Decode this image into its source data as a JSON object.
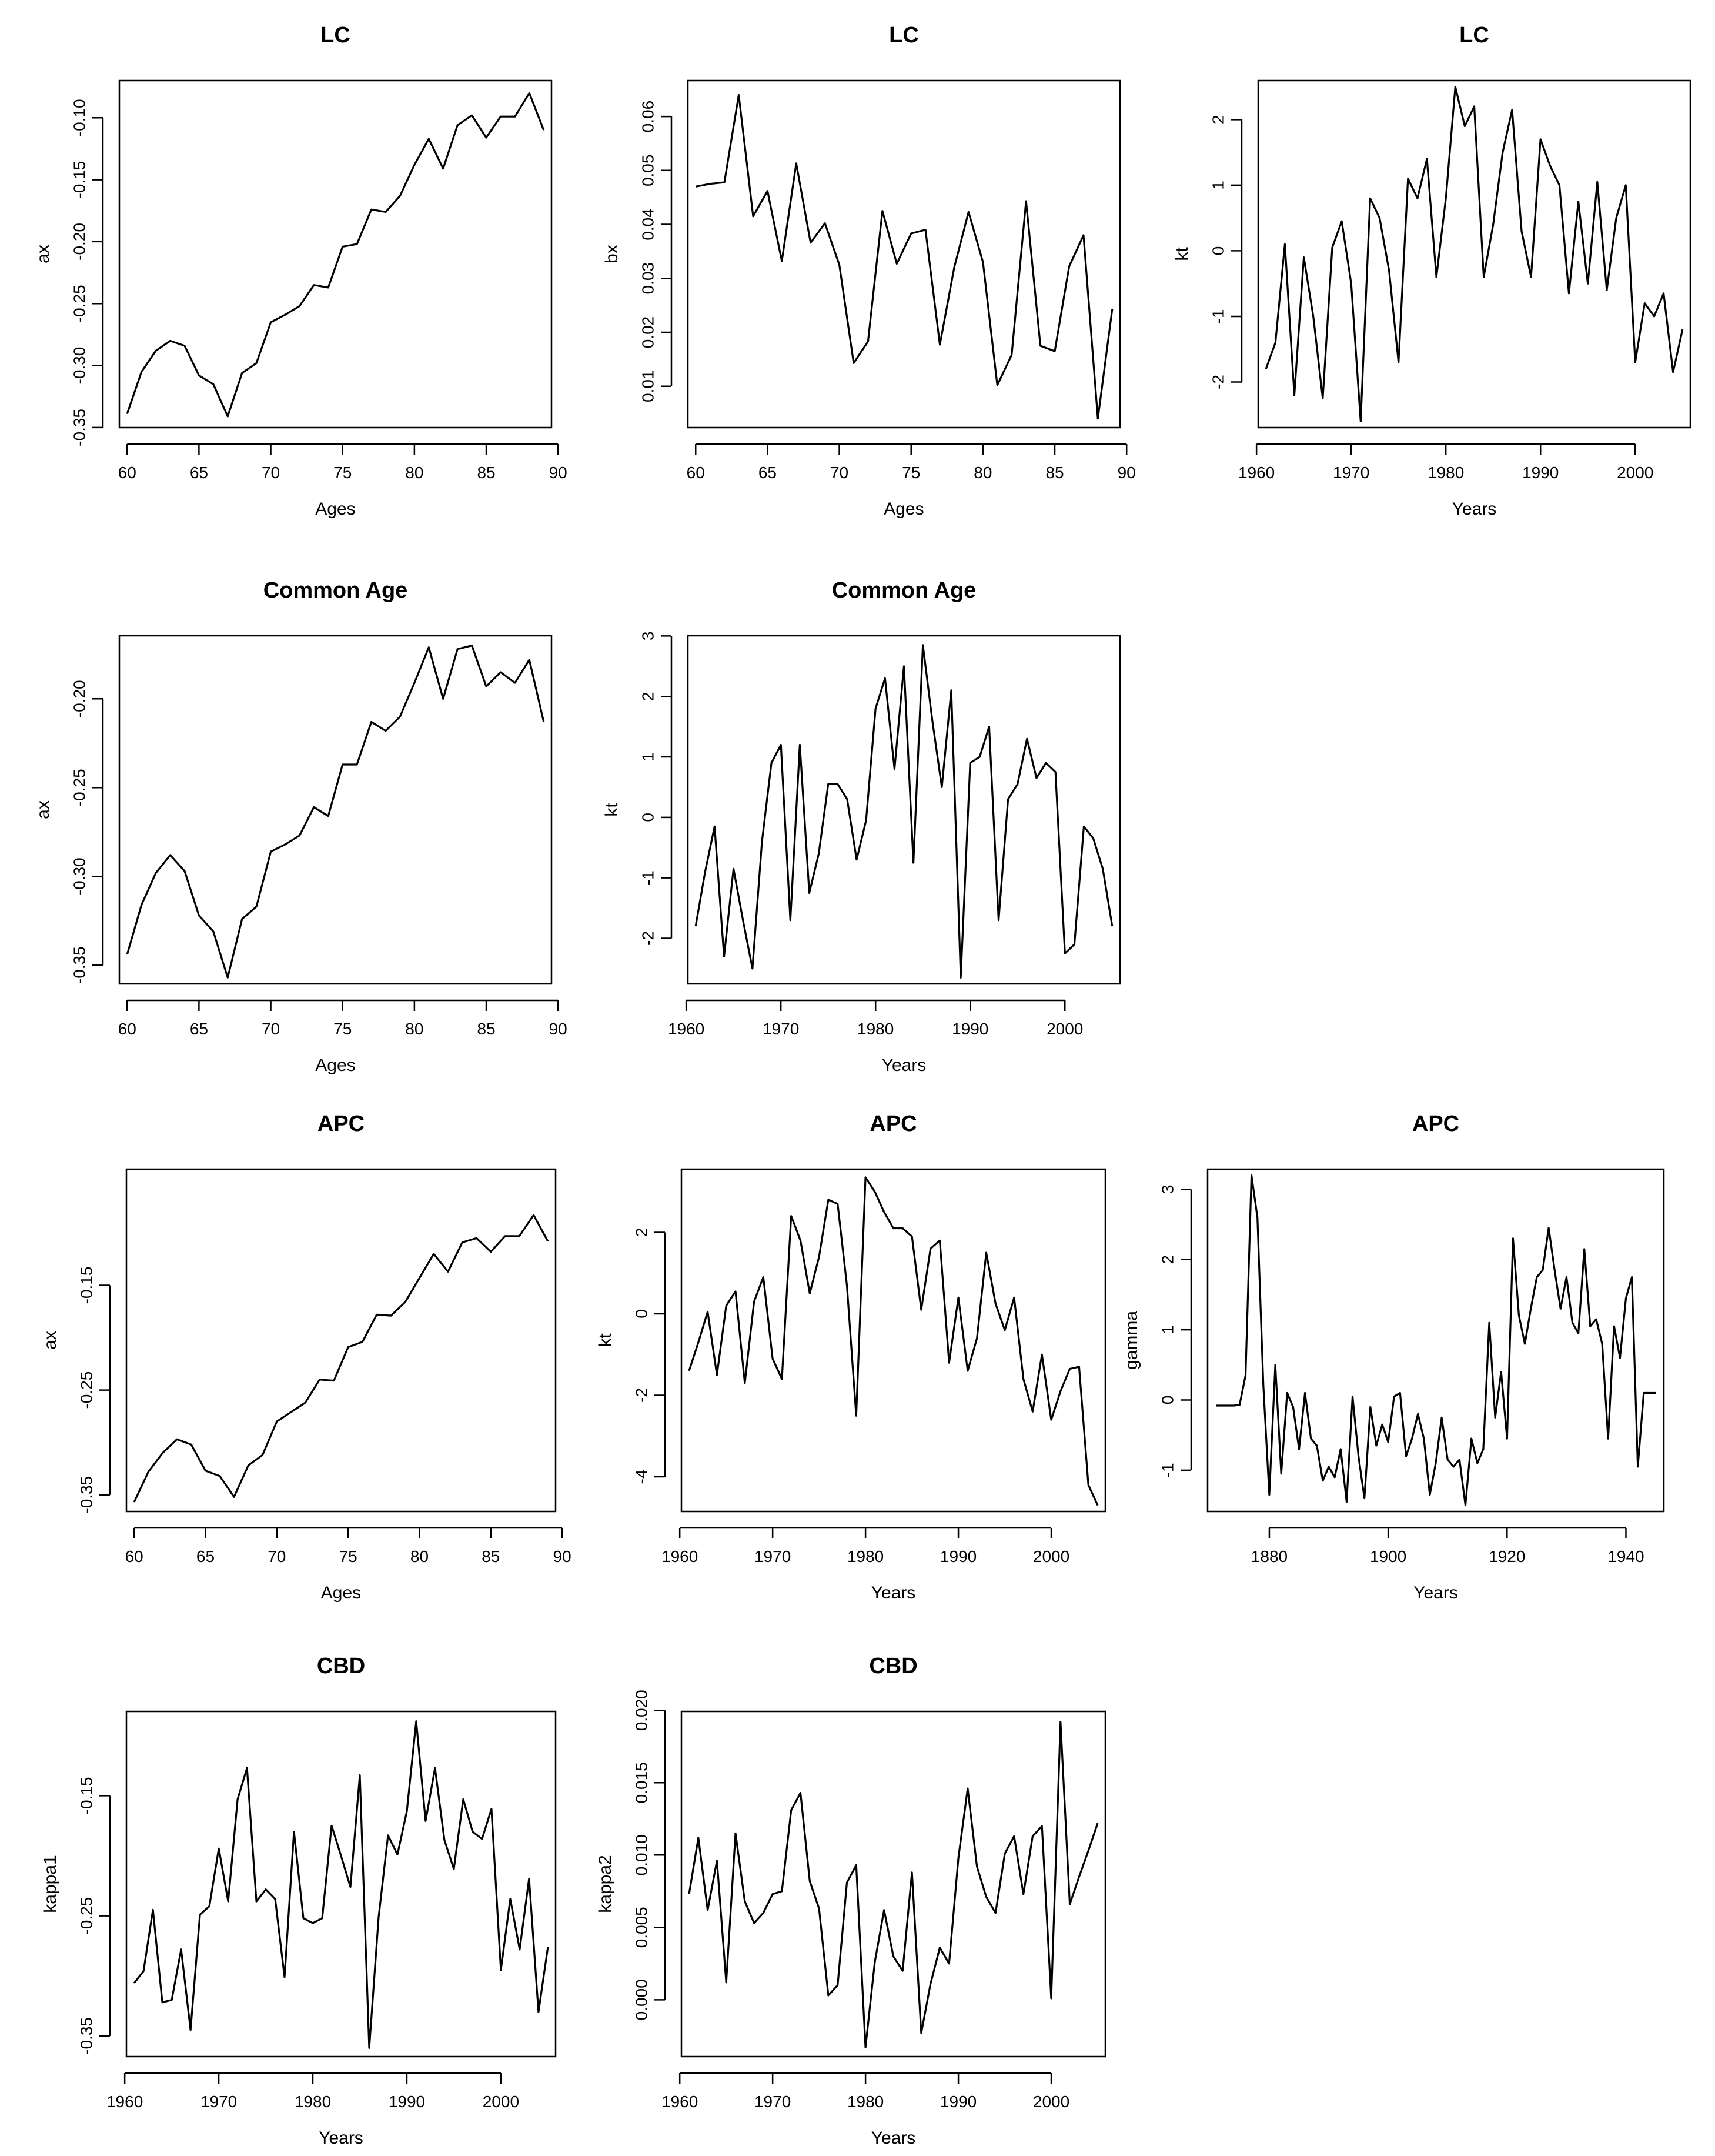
{
  "chart_data": [
    {
      "type": "line",
      "title": "LC",
      "xlabel": "Ages",
      "ylabel": "ax",
      "xlim": [
        60,
        89
      ],
      "ylim": [
        -0.345,
        -0.075
      ],
      "xticks": [
        60,
        65,
        70,
        75,
        80,
        85,
        90
      ],
      "xtick_labels": [
        "60",
        "65",
        "70",
        "75",
        "80",
        "85",
        "90"
      ],
      "yticks": [
        -0.35,
        -0.3,
        -0.25,
        -0.2,
        -0.15,
        -0.1
      ],
      "ytick_labels": [
        "-0.35",
        "-0.30",
        "-0.25",
        "-0.20",
        "-0.15",
        "-0.10"
      ],
      "x": [
        60,
        61,
        62,
        63,
        64,
        65,
        66,
        67,
        68,
        69,
        70,
        71,
        72,
        73,
        74,
        75,
        76,
        77,
        78,
        79,
        80,
        81,
        82,
        83,
        84,
        85,
        86,
        87,
        88,
        89
      ],
      "y": [
        -0.339,
        -0.305,
        -0.288,
        -0.28,
        -0.284,
        -0.308,
        -0.315,
        -0.341,
        -0.306,
        -0.298,
        -0.265,
        -0.259,
        -0.252,
        -0.235,
        -0.237,
        -0.204,
        -0.202,
        -0.174,
        -0.176,
        -0.163,
        -0.138,
        -0.117,
        -0.141,
        -0.106,
        -0.098,
        -0.116,
        -0.099,
        -0.099,
        -0.08,
        -0.11
      ]
    },
    {
      "type": "line",
      "title": "LC",
      "xlabel": "Ages",
      "ylabel": "bx",
      "xlim": [
        60,
        89
      ],
      "ylim": [
        0.0035,
        0.0655
      ],
      "xticks": [
        60,
        65,
        70,
        75,
        80,
        85,
        90
      ],
      "xtick_labels": [
        "60",
        "65",
        "70",
        "75",
        "80",
        "85",
        "90"
      ],
      "yticks": [
        0.01,
        0.02,
        0.03,
        0.04,
        0.05,
        0.06
      ],
      "ytick_labels": [
        "0.01",
        "0.02",
        "0.03",
        "0.04",
        "0.05",
        "0.06"
      ],
      "x": [
        60,
        61,
        62,
        63,
        64,
        65,
        66,
        67,
        68,
        69,
        70,
        71,
        72,
        73,
        74,
        75,
        76,
        77,
        78,
        79,
        80,
        81,
        82,
        83,
        84,
        85,
        86,
        87,
        88,
        89
      ],
      "y": [
        0.047,
        0.0475,
        0.0478,
        0.064,
        0.0415,
        0.0462,
        0.0332,
        0.0513,
        0.0366,
        0.0402,
        0.0325,
        0.0143,
        0.0183,
        0.0425,
        0.0327,
        0.0383,
        0.039,
        0.0177,
        0.032,
        0.0423,
        0.033,
        0.0102,
        0.0158,
        0.0443,
        0.0175,
        0.0165,
        0.0322,
        0.038,
        0.004,
        0.0243
      ]
    },
    {
      "type": "line",
      "title": "LC",
      "xlabel": "Years",
      "ylabel": "kt",
      "xlim": [
        1961,
        2005
      ],
      "ylim": [
        -2.6,
        2.5
      ],
      "xticks": [
        1960,
        1970,
        1980,
        1990,
        2000
      ],
      "xtick_labels": [
        "1960",
        "1970",
        "1980",
        "1990",
        "2000"
      ],
      "yticks": [
        -2,
        -1,
        0,
        1,
        2
      ],
      "ytick_labels": [
        "-2",
        "-1",
        "0",
        "1",
        "2"
      ],
      "x": [
        1961,
        1962,
        1963,
        1964,
        1965,
        1966,
        1967,
        1968,
        1969,
        1970,
        1971,
        1972,
        1973,
        1974,
        1975,
        1976,
        1977,
        1978,
        1979,
        1980,
        1981,
        1982,
        1983,
        1984,
        1985,
        1986,
        1987,
        1988,
        1989,
        1990,
        1991,
        1992,
        1993,
        1994,
        1995,
        1996,
        1997,
        1998,
        1999,
        2000,
        2001,
        2002,
        2003,
        2004,
        2005
      ],
      "y": [
        -1.8,
        -1.4,
        0.1,
        -2.2,
        -0.1,
        -1.0,
        -2.25,
        0.05,
        0.45,
        -0.5,
        -2.6,
        0.8,
        0.5,
        -0.3,
        -1.7,
        1.1,
        0.8,
        1.4,
        -0.4,
        0.8,
        2.5,
        1.9,
        2.2,
        -0.4,
        0.4,
        1.5,
        2.15,
        0.3,
        -0.4,
        1.7,
        1.3,
        1.0,
        -0.65,
        0.75,
        -0.5,
        1.05,
        -0.6,
        0.5,
        1.0,
        -1.7,
        -0.8,
        -1.0,
        -0.65,
        -1.85,
        -1.2
      ]
    },
    {
      "type": "line",
      "title": "Common Age",
      "xlabel": "Ages",
      "ylabel": "ax",
      "xlim": [
        60,
        89
      ],
      "ylim": [
        -0.357,
        -0.168
      ],
      "xticks": [
        60,
        65,
        70,
        75,
        80,
        85,
        90
      ],
      "xtick_labels": [
        "60",
        "65",
        "70",
        "75",
        "80",
        "85",
        "90"
      ],
      "yticks": [
        -0.35,
        -0.3,
        -0.25,
        -0.2
      ],
      "ytick_labels": [
        "-0.35",
        "-0.30",
        "-0.25",
        "-0.20"
      ],
      "x": [
        60,
        61,
        62,
        63,
        64,
        65,
        66,
        67,
        68,
        69,
        70,
        71,
        72,
        73,
        74,
        75,
        76,
        77,
        78,
        79,
        80,
        81,
        82,
        83,
        84,
        85,
        86,
        87,
        88,
        89
      ],
      "y": [
        -0.344,
        -0.316,
        -0.298,
        -0.288,
        -0.297,
        -0.322,
        -0.331,
        -0.357,
        -0.324,
        -0.317,
        -0.286,
        -0.282,
        -0.277,
        -0.261,
        -0.266,
        -0.237,
        -0.237,
        -0.213,
        -0.218,
        -0.21,
        -0.191,
        -0.171,
        -0.2,
        -0.172,
        -0.17,
        -0.193,
        -0.185,
        -0.191,
        -0.178,
        -0.213
      ]
    },
    {
      "type": "line",
      "title": "Common Age",
      "xlabel": "Years",
      "ylabel": "kt",
      "xlim": [
        1961,
        2005
      ],
      "ylim": [
        -2.65,
        2.9
      ],
      "xticks": [
        1960,
        1970,
        1980,
        1990,
        2000
      ],
      "xtick_labels": [
        "1960",
        "1970",
        "1980",
        "1990",
        "2000"
      ],
      "yticks": [
        -2,
        -1,
        0,
        1,
        2,
        3
      ],
      "ytick_labels": [
        "-2",
        "-1",
        "0",
        "1",
        "2",
        "3"
      ],
      "x": [
        1961,
        1962,
        1963,
        1964,
        1965,
        1966,
        1967,
        1968,
        1969,
        1970,
        1971,
        1972,
        1973,
        1974,
        1975,
        1976,
        1977,
        1978,
        1979,
        1980,
        1981,
        1982,
        1983,
        1984,
        1985,
        1986,
        1987,
        1988,
        1989,
        1990,
        1991,
        1992,
        1993,
        1994,
        1995,
        1996,
        1997,
        1998,
        1999,
        2000,
        2001,
        2002,
        2003,
        2004,
        2005
      ],
      "y": [
        -1.8,
        -0.9,
        -0.15,
        -2.3,
        -0.85,
        -1.7,
        -2.5,
        -0.4,
        0.9,
        1.2,
        -1.7,
        1.2,
        -1.25,
        -0.6,
        0.55,
        0.55,
        0.3,
        -0.7,
        -0.05,
        1.8,
        2.3,
        0.8,
        2.5,
        -0.75,
        2.85,
        1.6,
        0.5,
        2.1,
        -2.65,
        0.9,
        1.0,
        1.5,
        -1.7,
        0.3,
        0.55,
        1.3,
        0.65,
        0.9,
        0.75,
        -2.25,
        -2.1,
        -0.15,
        -0.35,
        -0.85,
        -1.8
      ]
    },
    {
      "type": "line",
      "title": "APC",
      "xlabel": "Ages",
      "ylabel": "ax",
      "xlim": [
        60,
        89
      ],
      "ylim": [
        -0.36,
        -0.045
      ],
      "xticks": [
        60,
        65,
        70,
        75,
        80,
        85,
        90
      ],
      "xtick_labels": [
        "60",
        "65",
        "70",
        "75",
        "80",
        "85",
        "90"
      ],
      "yticks": [
        -0.35,
        -0.25,
        -0.15
      ],
      "ytick_labels": [
        "-0.35",
        "-0.25",
        "-0.15"
      ],
      "x": [
        60,
        61,
        62,
        63,
        64,
        65,
        66,
        67,
        68,
        69,
        70,
        71,
        72,
        73,
        74,
        75,
        76,
        77,
        78,
        79,
        80,
        81,
        82,
        83,
        84,
        85,
        86,
        87,
        88,
        89
      ],
      "y": [
        -0.357,
        -0.328,
        -0.31,
        -0.297,
        -0.302,
        -0.327,
        -0.332,
        -0.352,
        -0.322,
        -0.312,
        -0.28,
        -0.271,
        -0.262,
        -0.24,
        -0.241,
        -0.209,
        -0.204,
        -0.178,
        -0.179,
        -0.166,
        -0.143,
        -0.12,
        -0.137,
        -0.109,
        -0.105,
        -0.118,
        -0.103,
        -0.103,
        -0.083,
        -0.108
      ]
    },
    {
      "type": "line",
      "title": "APC",
      "xlabel": "Years",
      "ylabel": "kt",
      "xlim": [
        1961,
        2005
      ],
      "ylim": [
        -4.7,
        3.4
      ],
      "xticks": [
        1960,
        1970,
        1980,
        1990,
        2000
      ],
      "xtick_labels": [
        "1960",
        "1970",
        "1980",
        "1990",
        "2000"
      ],
      "yticks": [
        -4,
        -2,
        0,
        2
      ],
      "ytick_labels": [
        "-4",
        "-2",
        "0",
        "2"
      ],
      "x": [
        1961,
        1962,
        1963,
        1964,
        1965,
        1966,
        1967,
        1968,
        1969,
        1970,
        1971,
        1972,
        1973,
        1974,
        1975,
        1976,
        1977,
        1978,
        1979,
        1980,
        1981,
        1982,
        1983,
        1984,
        1985,
        1986,
        1987,
        1988,
        1989,
        1990,
        1991,
        1992,
        1993,
        1994,
        1995,
        1996,
        1997,
        1998,
        1999,
        2000,
        2001,
        2002,
        2003,
        2004,
        2005
      ],
      "y": [
        -1.4,
        -0.7,
        0.05,
        -1.5,
        0.2,
        0.55,
        -1.7,
        0.3,
        0.9,
        -1.1,
        -1.6,
        2.4,
        1.8,
        0.5,
        1.4,
        2.8,
        2.7,
        0.7,
        -2.5,
        3.35,
        3.0,
        2.5,
        2.1,
        2.1,
        1.9,
        0.1,
        1.6,
        1.8,
        -1.2,
        0.4,
        -1.4,
        -0.6,
        1.5,
        0.25,
        -0.4,
        0.4,
        -1.6,
        -2.4,
        -1.0,
        -2.6,
        -1.9,
        -1.35,
        -1.3,
        -4.2,
        -4.7
      ]
    },
    {
      "type": "line",
      "title": "APC",
      "xlabel": "Years",
      "ylabel": "gamma",
      "xlim": [
        1871,
        1945
      ],
      "ylim": [
        -1.5,
        3.2
      ],
      "xticks": [
        1880,
        1900,
        1920,
        1940
      ],
      "xtick_labels": [
        "1880",
        "1900",
        "1920",
        "1940"
      ],
      "yticks": [
        -1,
        0,
        1,
        2,
        3
      ],
      "ytick_labels": [
        "-1",
        "0",
        "1",
        "2",
        "3"
      ],
      "x": [
        1871,
        1872,
        1873,
        1874,
        1875,
        1876,
        1877,
        1878,
        1879,
        1880,
        1881,
        1882,
        1883,
        1884,
        1885,
        1886,
        1887,
        1888,
        1889,
        1890,
        1891,
        1892,
        1893,
        1894,
        1895,
        1896,
        1897,
        1898,
        1899,
        1900,
        1901,
        1902,
        1903,
        1904,
        1905,
        1906,
        1907,
        1908,
        1909,
        1910,
        1911,
        1912,
        1913,
        1914,
        1915,
        1916,
        1917,
        1918,
        1919,
        1920,
        1921,
        1922,
        1923,
        1924,
        1925,
        1926,
        1927,
        1928,
        1929,
        1930,
        1931,
        1932,
        1933,
        1934,
        1935,
        1936,
        1937,
        1938,
        1939,
        1940,
        1941,
        1942,
        1943,
        1944,
        1945
      ],
      "y": [
        -0.08,
        -0.08,
        -0.08,
        -0.08,
        -0.07,
        0.35,
        3.2,
        2.6,
        0.2,
        -1.35,
        0.5,
        -1.05,
        0.1,
        -0.1,
        -0.7,
        0.1,
        -0.55,
        -0.65,
        -1.15,
        -0.95,
        -1.1,
        -0.7,
        -1.45,
        0.05,
        -0.8,
        -1.4,
        -0.1,
        -0.65,
        -0.35,
        -0.6,
        0.05,
        0.1,
        -0.8,
        -0.55,
        -0.2,
        -0.55,
        -1.35,
        -0.9,
        -0.25,
        -0.85,
        -0.95,
        -0.85,
        -1.5,
        -0.55,
        -0.9,
        -0.7,
        1.1,
        -0.25,
        0.4,
        -0.55,
        2.3,
        1.2,
        0.8,
        1.3,
        1.75,
        1.85,
        2.45,
        1.85,
        1.3,
        1.75,
        1.1,
        0.95,
        2.15,
        1.05,
        1.15,
        0.8,
        -0.55,
        1.05,
        0.6,
        1.45,
        1.75,
        -0.95,
        0.1,
        0.1,
        0.1
      ]
    },
    {
      "type": "line",
      "title": "CBD",
      "xlabel": "Years",
      "ylabel": "kappa1",
      "xlim": [
        1961,
        2005
      ],
      "ylim": [
        -0.362,
        -0.085
      ],
      "xticks": [
        1960,
        1970,
        1980,
        1990,
        2000
      ],
      "xtick_labels": [
        "1960",
        "1970",
        "1980",
        "1990",
        "2000"
      ],
      "yticks": [
        -0.35,
        -0.25,
        -0.15
      ],
      "ytick_labels": [
        "-0.35",
        "-0.25",
        "-0.15"
      ],
      "x": [
        1961,
        1962,
        1963,
        1964,
        1965,
        1966,
        1967,
        1968,
        1969,
        1970,
        1971,
        1972,
        1973,
        1974,
        1975,
        1976,
        1977,
        1978,
        1979,
        1980,
        1981,
        1982,
        1983,
        1984,
        1985,
        1986,
        1987,
        1988,
        1989,
        1990,
        1991,
        1992,
        1993,
        1994,
        1995,
        1996,
        1997,
        1998,
        1999,
        2000,
        2001,
        2002,
        2003,
        2004,
        2005
      ],
      "y": [
        -0.306,
        -0.296,
        -0.245,
        -0.322,
        -0.32,
        -0.278,
        -0.345,
        -0.249,
        -0.242,
        -0.194,
        -0.238,
        -0.153,
        -0.127,
        -0.238,
        -0.228,
        -0.236,
        -0.301,
        -0.18,
        -0.252,
        -0.256,
        -0.252,
        -0.175,
        -0.2,
        -0.226,
        -0.133,
        -0.36,
        -0.251,
        -0.183,
        -0.199,
        -0.163,
        -0.088,
        -0.171,
        -0.127,
        -0.187,
        -0.211,
        -0.153,
        -0.18,
        -0.186,
        -0.161,
        -0.295,
        -0.236,
        -0.278,
        -0.219,
        -0.33,
        -0.276
      ]
    },
    {
      "type": "line",
      "title": "CBD",
      "xlabel": "Years",
      "ylabel": "kappa2",
      "xlim": [
        1961,
        2005
      ],
      "ylim": [
        -0.0035,
        0.0195
      ],
      "xticks": [
        1960,
        1970,
        1980,
        1990,
        2000
      ],
      "xtick_labels": [
        "1960",
        "1970",
        "1980",
        "1990",
        "2000"
      ],
      "yticks": [
        0.0,
        0.005,
        0.01,
        0.015,
        0.02
      ],
      "ytick_labels": [
        "0.000",
        "0.005",
        "0.010",
        "0.015",
        "0.020"
      ],
      "x": [
        1961,
        1962,
        1963,
        1964,
        1965,
        1966,
        1967,
        1968,
        1969,
        1970,
        1971,
        1972,
        1973,
        1974,
        1975,
        1976,
        1977,
        1978,
        1979,
        1980,
        1981,
        1982,
        1983,
        1984,
        1985,
        1986,
        1987,
        1988,
        1989,
        1990,
        1991,
        1992,
        1993,
        1994,
        1995,
        1996,
        1997,
        1998,
        1999,
        2000,
        2001,
        2002,
        2003,
        2004,
        2005
      ],
      "y": [
        0.0073,
        0.0112,
        0.0062,
        0.0096,
        0.0012,
        0.0115,
        0.0068,
        0.0053,
        0.006,
        0.0073,
        0.0075,
        0.0131,
        0.0143,
        0.0082,
        0.0063,
        0.0003,
        0.001,
        0.0081,
        0.0093,
        -0.0033,
        0.0026,
        0.0062,
        0.003,
        0.002,
        0.0088,
        -0.0023,
        0.0011,
        0.0036,
        0.0025,
        0.0098,
        0.0146,
        0.0092,
        0.0071,
        0.006,
        0.0101,
        0.0113,
        0.0073,
        0.0113,
        0.012,
        0.0001,
        0.0192,
        0.0066,
        0.0085,
        0.0103,
        0.0122
      ]
    }
  ]
}
